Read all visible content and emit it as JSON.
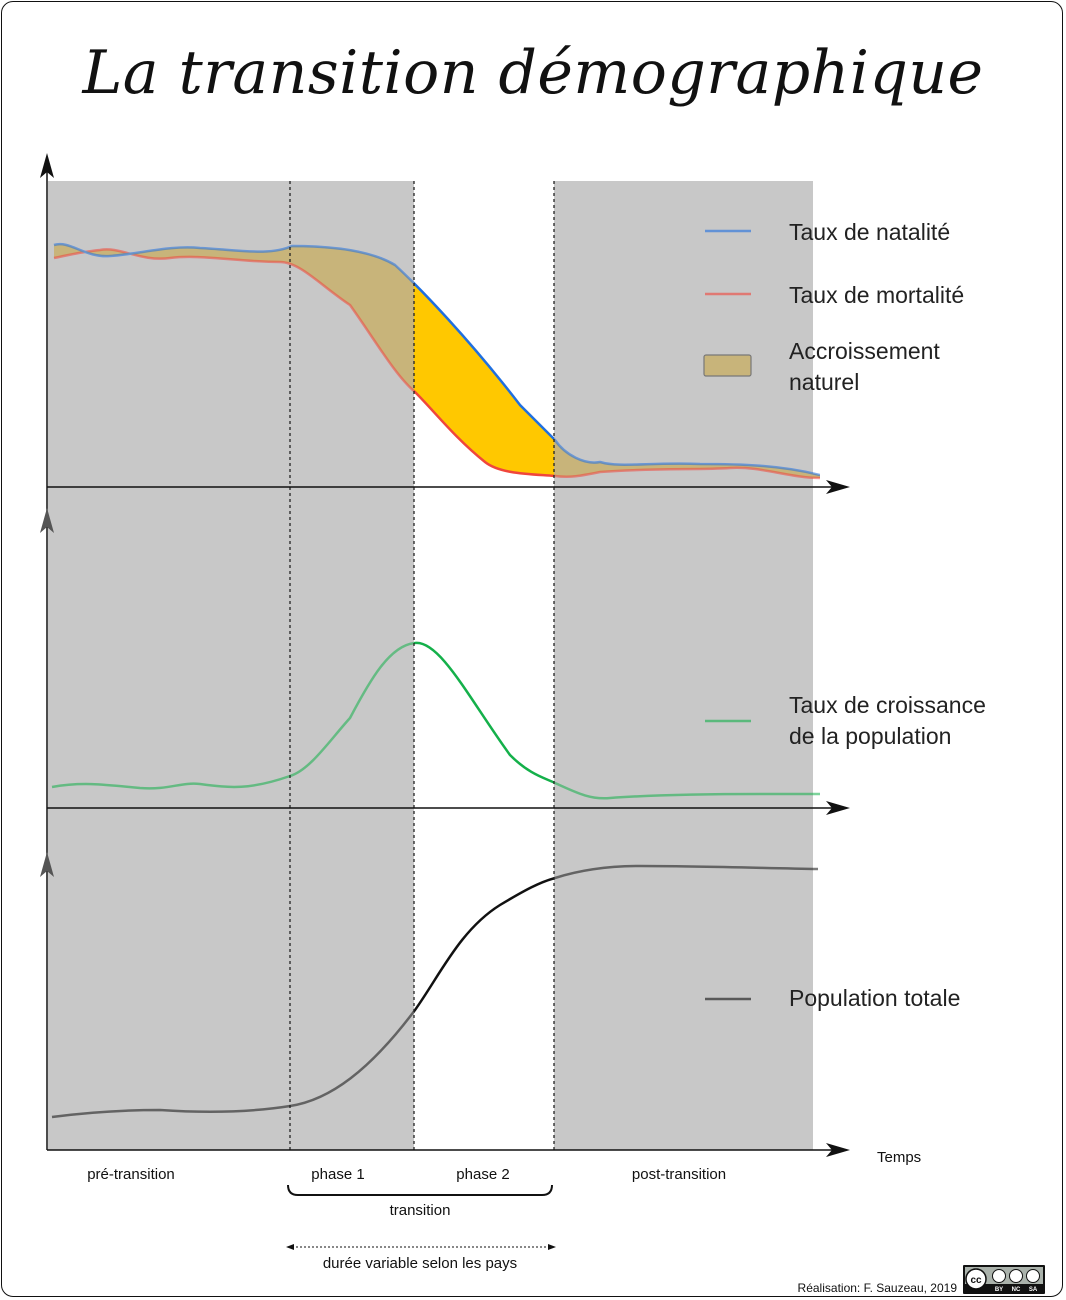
{
  "title": "La transition démographique",
  "legend": {
    "natalite": "Taux de natalité",
    "mortalite": "Taux de mortalité",
    "accroissement_line1": "Accroissement",
    "accroissement_line2": "naturel",
    "croissance_line1": "Taux de croissance",
    "croissance_line2": "de la population",
    "population": "Population totale"
  },
  "axis": {
    "x_label": "Temps"
  },
  "phases": {
    "pre": "pré-transition",
    "phase1": "phase 1",
    "phase2": "phase 2",
    "post": "post-transition",
    "transition": "transition",
    "duration": "durée variable selon les pays"
  },
  "credit": "Réalisation: F. Sauzeau, 2019",
  "license": {
    "cc": "cc",
    "by": "BY",
    "nc": "NC",
    "sa": "SA"
  },
  "colors": {
    "natalite": "#1f6fe0",
    "mortalite": "#f0463c",
    "accroissement_fill": "#ffc800",
    "croissance": "#14b04a",
    "population": "#111111",
    "shade": "#c8c8c8"
  }
}
